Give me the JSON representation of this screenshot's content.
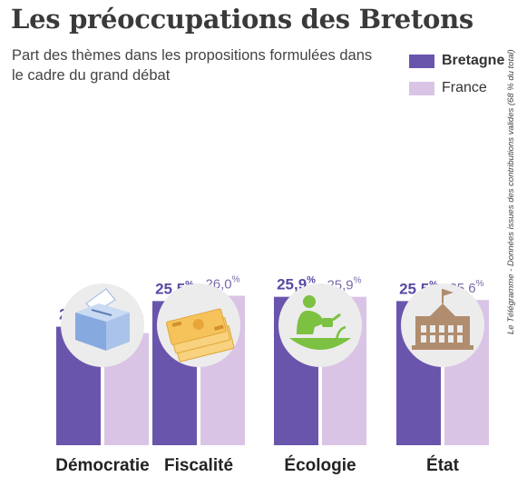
{
  "title": "Les préoccupations des Bretons",
  "subtitle": "Part des thèmes dans les propositions formulées dans le cadre du grand débat",
  "source": "Le Télégramme - Données issues des contributions valides (68 % du total)",
  "colors": {
    "bretagne": "#6a55ad",
    "france": "#d9c4e6",
    "bretagne_text": "#5b4aa2",
    "france_text": "#7b6aa8"
  },
  "legend": [
    {
      "name": "Bretagne",
      "color": "#6a55ad"
    },
    {
      "name": "France",
      "color": "#d9c4e6"
    }
  ],
  "chart_data": {
    "type": "bar",
    "title": "Les préoccupations des Bretons",
    "subtitle": "Part des thèmes dans les propositions formulées dans le cadre du grand débat",
    "categories": [
      "Démocratie",
      "Fiscalité",
      "Écologie",
      "État"
    ],
    "series": [
      {
        "name": "Bretagne",
        "values": [
          23.1,
          25.5,
          25.9,
          25.5
        ],
        "labels": [
          "23,1",
          "25,5",
          "25,9",
          "25,5"
        ]
      },
      {
        "name": "France",
        "values": [
          22.5,
          26.0,
          25.9,
          25.6
        ],
        "labels": [
          "22,5",
          "26,0",
          "25,9",
          "25,6"
        ]
      }
    ],
    "unit": "%",
    "icons": [
      "ballot-box-icon",
      "banknotes-icon",
      "gardener-icon",
      "government-building-icon"
    ],
    "legend_position": "top-right",
    "grid": false
  }
}
